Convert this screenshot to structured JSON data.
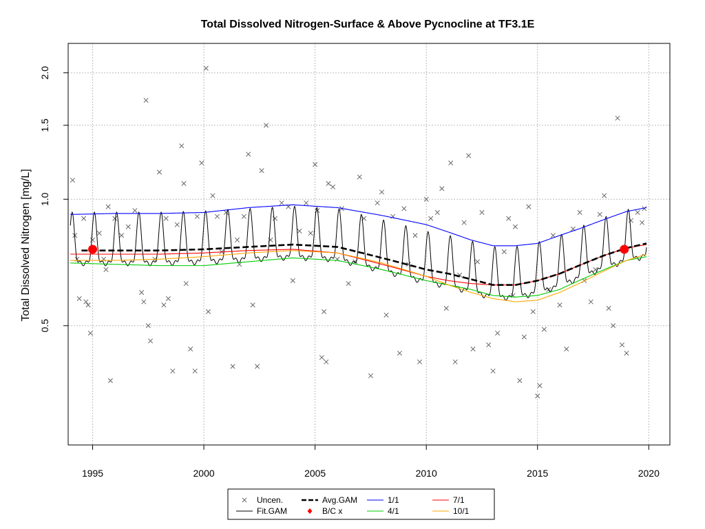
{
  "chart_data": {
    "type": "line",
    "title": "Total Dissolved Nitrogen-Surface & Above Pycnocline at TF3.1E",
    "ylabel": "Total Dissolved Nitrogen [mg/L]",
    "xlabel": "",
    "xlim": [
      1993.9,
      2020.95
    ],
    "ylim": [
      0.26,
      2.35
    ],
    "y_scale": "log",
    "grid": true,
    "x_ticks": [
      1995,
      2000,
      2005,
      2010,
      2015,
      2020
    ],
    "y_ticks": [
      0.5,
      1.0,
      1.5,
      2.0
    ],
    "x_tick_labels": [
      "1995",
      "2000",
      "2005",
      "2010",
      "2015",
      "2020"
    ],
    "y_tick_labels": [
      "0.5",
      "1.0",
      "1.5",
      "2.0"
    ],
    "legend_position": "bottom-center",
    "legend": [
      {
        "label": "Uncen.",
        "style": "cross",
        "color": "#666666"
      },
      {
        "label": "Fit.GAM",
        "style": "line",
        "color": "#000000"
      },
      {
        "label": "Avg.GAM",
        "style": "dashed",
        "color": "#000000"
      },
      {
        "label": "B/C x",
        "style": "diamond",
        "color": "#ff0000"
      },
      {
        "label": "1/1",
        "style": "line",
        "color": "#0000ff"
      },
      {
        "label": "4/1",
        "style": "line",
        "color": "#00cc00"
      },
      {
        "label": "7/1",
        "style": "line",
        "color": "#ff0000"
      },
      {
        "label": "10/1",
        "style": "line",
        "color": "#ffa500"
      }
    ],
    "colors": {
      "uncen": "#666666",
      "fit": "#000000",
      "avg": "#000000",
      "bc": "#ff0000",
      "s11": "#0000ff",
      "s41": "#00cc00",
      "s71": "#ff0000",
      "s101": "#ffa500",
      "grid": "#bbbbbb"
    },
    "series": [
      {
        "key": "s11",
        "name": "1/1",
        "x": [
          1994.0,
          1996,
          1998,
          2000,
          2002,
          2004,
          2006,
          2008,
          2010,
          2011,
          2012,
          2013,
          2014,
          2015,
          2016,
          2017,
          2018,
          2019,
          2019.9
        ],
        "y": [
          0.92,
          0.925,
          0.925,
          0.93,
          0.955,
          0.97,
          0.955,
          0.915,
          0.87,
          0.835,
          0.8,
          0.775,
          0.775,
          0.785,
          0.82,
          0.855,
          0.895,
          0.935,
          0.955
        ]
      },
      {
        "key": "s41",
        "name": "4/1",
        "x": [
          1994.0,
          1996,
          1998,
          2000,
          2002,
          2004,
          2006,
          2008,
          2010,
          2011,
          2012,
          2013,
          2014,
          2015,
          2016,
          2017,
          2018,
          2019,
          2019.9
        ],
        "y": [
          0.705,
          0.7,
          0.695,
          0.695,
          0.71,
          0.725,
          0.715,
          0.68,
          0.64,
          0.625,
          0.61,
          0.59,
          0.585,
          0.59,
          0.61,
          0.645,
          0.68,
          0.715,
          0.73
        ]
      },
      {
        "key": "s71",
        "name": "7/1",
        "x": [
          1994.0,
          1996,
          1998,
          2000,
          2002,
          2004,
          2006,
          2008,
          2010,
          2011,
          2012,
          2013,
          2014,
          2015,
          2016,
          2017,
          2018,
          2019,
          2019.9
        ],
        "y": [
          0.74,
          0.74,
          0.74,
          0.745,
          0.755,
          0.76,
          0.745,
          0.7,
          0.655,
          0.64,
          0.63,
          0.625,
          0.625,
          0.64,
          0.665,
          0.7,
          0.735,
          0.765,
          0.78
        ]
      },
      {
        "key": "s101",
        "name": "10/1",
        "x": [
          1994.0,
          1996,
          1998,
          2000,
          2002,
          2004,
          2006,
          2008,
          2010,
          2011,
          2012,
          2013,
          2014,
          2015,
          2016,
          2017,
          2018,
          2019,
          2019.9
        ],
        "y": [
          0.715,
          0.715,
          0.72,
          0.73,
          0.745,
          0.755,
          0.745,
          0.705,
          0.655,
          0.625,
          0.6,
          0.58,
          0.57,
          0.575,
          0.6,
          0.635,
          0.675,
          0.715,
          0.74
        ]
      },
      {
        "key": "avg",
        "name": "Avg.GAM",
        "x": [
          1994.5,
          1996,
          1998,
          2000,
          2002,
          2004,
          2006,
          2008,
          2010,
          2011,
          2012,
          2013,
          2014,
          2015,
          2016,
          2017,
          2018,
          2019,
          2019.9
        ],
        "y": [
          0.755,
          0.755,
          0.755,
          0.76,
          0.77,
          0.78,
          0.77,
          0.725,
          0.68,
          0.665,
          0.645,
          0.625,
          0.625,
          0.64,
          0.665,
          0.7,
          0.735,
          0.765,
          0.785
        ]
      }
    ],
    "fit_gam": {
      "name": "Fit.GAM",
      "x_start": 1994.0,
      "x_end": 2019.9,
      "step": 0.02,
      "peak_phase": 0.08,
      "amplitude": 0.21,
      "baseline": {
        "x": [
          1994.0,
          1996,
          1998,
          2000,
          2002,
          2004,
          2006,
          2008,
          2010,
          2011,
          2012,
          2013,
          2014,
          2015,
          2016,
          2017,
          2018,
          2019,
          2019.9
        ],
        "y": [
          0.755,
          0.755,
          0.755,
          0.76,
          0.77,
          0.78,
          0.77,
          0.725,
          0.68,
          0.665,
          0.645,
          0.625,
          0.625,
          0.64,
          0.665,
          0.7,
          0.735,
          0.765,
          0.785
        ]
      }
    },
    "bc_points": {
      "name": "B/C x",
      "x": [
        1995.0,
        2018.9
      ],
      "y": [
        0.76,
        0.76
      ]
    },
    "uncen": {
      "name": "Uncen.",
      "x": [
        1994.1,
        1994.2,
        1994.3,
        1994.4,
        1994.6,
        1994.7,
        1994.8,
        1994.9,
        1995.0,
        1995.3,
        1995.5,
        1995.6,
        1995.7,
        1995.8,
        1996.0,
        1996.3,
        1996.6,
        1996.9,
        1997.2,
        1997.3,
        1997.4,
        1997.5,
        1997.6,
        1997.8,
        1998.0,
        1998.2,
        1998.3,
        1998.4,
        1998.6,
        1998.8,
        1999.0,
        1999.1,
        1999.2,
        1999.4,
        1999.6,
        1999.7,
        1999.9,
        2000.1,
        2000.2,
        2000.4,
        2000.6,
        2000.8,
        2001.0,
        2001.3,
        2001.5,
        2001.6,
        2001.8,
        2002.0,
        2002.2,
        2002.4,
        2002.6,
        2002.8,
        2003.0,
        2003.2,
        2003.5,
        2003.8,
        2004.0,
        2004.3,
        2004.6,
        2004.8,
        2005.0,
        2005.1,
        2005.3,
        2005.4,
        2005.5,
        2005.6,
        2005.8,
        2006.0,
        2006.2,
        2006.5,
        2006.8,
        2007.0,
        2007.2,
        2007.5,
        2007.8,
        2008.0,
        2008.2,
        2008.5,
        2008.8,
        2009.0,
        2009.2,
        2009.5,
        2009.7,
        2010.0,
        2010.2,
        2010.5,
        2010.7,
        2010.9,
        2011.1,
        2011.3,
        2011.5,
        2011.7,
        2011.9,
        2012.1,
        2012.3,
        2012.5,
        2012.8,
        2013.0,
        2013.2,
        2013.5,
        2013.7,
        2013.9,
        2014.0,
        2014.2,
        2014.4,
        2014.6,
        2014.8,
        2015.0,
        2015.1,
        2015.3,
        2015.5,
        2015.7,
        2016.0,
        2016.3,
        2016.6,
        2016.9,
        2017.1,
        2017.4,
        2017.6,
        2017.8,
        2018.0,
        2018.2,
        2018.4,
        2018.6,
        2018.8,
        2019.0,
        2019.2,
        2019.5,
        2019.7,
        2019.8
      ],
      "y": [
        1.11,
        0.82,
        0.72,
        0.58,
        0.9,
        0.57,
        0.56,
        0.48,
        0.8,
        0.83,
        0.72,
        0.68,
        0.96,
        0.37,
        0.9,
        0.82,
        0.86,
        0.94,
        0.6,
        0.57,
        1.72,
        0.5,
        0.46,
        0.72,
        1.16,
        0.56,
        0.9,
        0.58,
        0.39,
        0.87,
        1.34,
        1.09,
        0.63,
        0.44,
        0.39,
        0.91,
        1.22,
        2.05,
        0.54,
        1.02,
        0.91,
        0.75,
        0.93,
        0.4,
        0.8,
        0.7,
        0.91,
        1.28,
        0.56,
        0.4,
        1.17,
        1.5,
        0.8,
        0.9,
        0.98,
        0.96,
        0.64,
        0.84,
        0.98,
        0.83,
        1.21,
        0.94,
        0.42,
        0.54,
        0.41,
        1.09,
        1.07,
        0.72,
        0.95,
        0.63,
        0.71,
        1.13,
        0.9,
        0.38,
        0.98,
        1.04,
        0.53,
        0.91,
        0.43,
        0.95,
        0.7,
        0.82,
        0.41,
        1.0,
        0.9,
        0.93,
        1.06,
        0.55,
        1.22,
        0.41,
        0.66,
        0.88,
        1.27,
        0.44,
        0.71,
        0.93,
        0.45,
        0.39,
        0.48,
        0.75,
        0.9,
        0.59,
        0.86,
        0.37,
        0.47,
        0.96,
        0.54,
        0.34,
        0.36,
        0.49,
        0.61,
        0.82,
        0.56,
        0.44,
        0.85,
        0.93,
        0.64,
        0.57,
        0.68,
        0.92,
        1.02,
        0.55,
        0.5,
        1.56,
        0.45,
        0.43,
        0.89,
        0.93,
        0.88,
        0.95
      ]
    }
  }
}
